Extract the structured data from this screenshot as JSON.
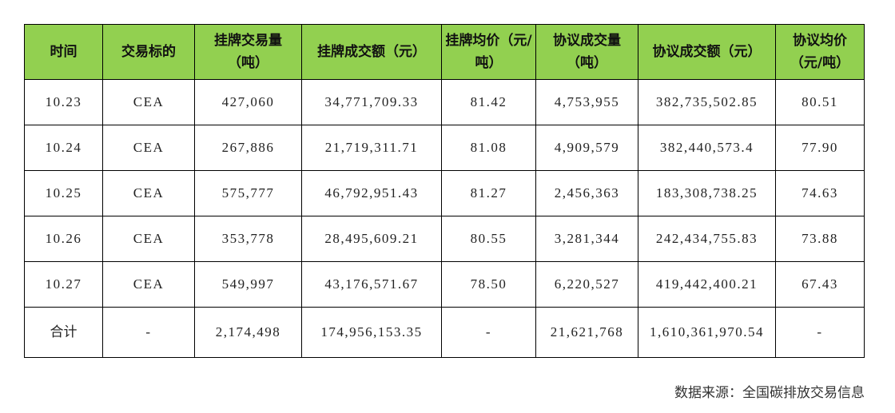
{
  "table": {
    "header": [
      "时间",
      "交易标的",
      "挂牌交易量（吨）",
      "挂牌成交额（元）",
      "挂牌均价（元/吨）",
      "协议成交量（吨）",
      "协议成交额（元）",
      "协议均价（元/吨）"
    ],
    "rows": [
      [
        "10.23",
        "CEA",
        "427,060",
        "34,771,709.33",
        "81.42",
        "4,753,955",
        "382,735,502.85",
        "80.51"
      ],
      [
        "10.24",
        "CEA",
        "267,886",
        "21,719,311.71",
        "81.08",
        "4,909,579",
        "382,440,573.4",
        "77.90"
      ],
      [
        "10.25",
        "CEA",
        "575,777",
        "46,792,951.43",
        "81.27",
        "2,456,363",
        "183,308,738.25",
        "74.63"
      ],
      [
        "10.26",
        "CEA",
        "353,778",
        "28,495,609.21",
        "80.55",
        "3,281,344",
        "242,434,755.83",
        "73.88"
      ],
      [
        "10.27",
        "CEA",
        "549,997",
        "43,176,571.67",
        "78.50",
        "6,220,527",
        "419,442,400.21",
        "67.43"
      ],
      [
        "合计",
        "-",
        "2,174,498",
        "174,956,153.35",
        "-",
        "21,621,768",
        "1,610,361,970.54",
        "-"
      ]
    ]
  },
  "source": "数据来源：全国碳排放交易信息"
}
